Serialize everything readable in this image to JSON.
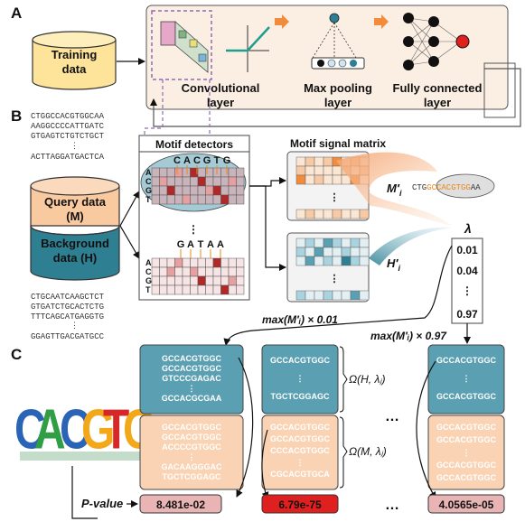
{
  "panels": {
    "a": "A",
    "b": "B",
    "c": "C"
  },
  "panel_a": {
    "training_label_1": "Training",
    "training_label_2": "data",
    "conv_label_1": "Convolutional",
    "conv_label_2": "layer",
    "pool_label_1": "Max pooling",
    "pool_label_2": "layer",
    "fc_label_1": "Fully connected",
    "fc_label_2": "layer"
  },
  "panel_b": {
    "seqs_top": [
      "CTGGCCACGTGGCAA",
      "AAGGCCCCATTGATC",
      "GTGAGTCTGTCTGCT",
      "⋮",
      "ACTTAGGATGACTCA"
    ],
    "seqs_bottom": [
      "CTGCAATCAAGCTCT",
      "GTGATCTGCACTCTG",
      "TTTCAGCATGAGGTG",
      "⋮",
      "GGAGTTGACGATGCC"
    ],
    "query_1": "Query data",
    "query_2": "(M)",
    "background_1": "Background",
    "background_2": "data (H)",
    "motif_detectors": "Motif detectors",
    "motif_signal_matrix": "Motif signal matrix",
    "motif1_letters": [
      "C",
      "A",
      "C",
      "G",
      "T",
      "G"
    ],
    "motif2_letters": [
      "G",
      "A",
      "T",
      "A",
      "A"
    ],
    "row_labels": [
      "A",
      "C",
      "G",
      "T"
    ],
    "dots": "⋮",
    "m_label": "M′",
    "m_sub": "i",
    "h_label": "H′",
    "h_sub": "i",
    "lambda": "λ",
    "lambda_values": [
      "0.01",
      "0.04",
      "⋮",
      "0.97"
    ],
    "seq_pre": "CTG",
    "seq_motif": "GCCACGTGG",
    "seq_post": "AA",
    "max_low": "max(M′ᵢ) × 0.01",
    "max_high": "max(M′ᵢ) × 0.97"
  },
  "panel_c": {
    "logo_letters": [
      "C",
      "A",
      "C",
      "G",
      "T",
      "G"
    ],
    "col1_bg": [
      "GCCACGTGGC",
      "GCCACGTGGC",
      "GTCCCGAGAC",
      "⋮",
      "GCCACGCGAA"
    ],
    "col1_q": [
      "GCCACGTGGC",
      "GCCACGTGGC",
      "ACCCCGTGGC",
      "⋮",
      "GACAAGGGAC",
      "TGCTCGGAGC"
    ],
    "col2_bg": [
      "GCCACGTGGC",
      "⋮",
      "TGCTCGGAGC"
    ],
    "col2_q": [
      "GCCACGTGGC",
      "GCCACGTGGC",
      "CCCACGTGGC",
      "⋮",
      "CGCACGTGCA"
    ],
    "col3_bg": [
      "GCCACGTGGC",
      "⋮",
      "GCCACGTGGC"
    ],
    "col3_q": [
      "GCCACGTGGC",
      "GCCACGTGGC",
      "⋮",
      "GCCACGTGGC",
      "GCCACGTGGC"
    ],
    "omega_h": "Ω(H, λⱼ)",
    "omega_m": "Ω(M, λⱼ)",
    "ellipsis": "…",
    "pvalue_label": "P-value",
    "pvalues": [
      "8.481e-02",
      "6.79e-75",
      "4.0565e-05"
    ]
  },
  "colors": {
    "panel_a_bg": "#fbeee2",
    "query": "#f9c9a0",
    "background": "#2f7f92",
    "training": "#fde49a",
    "teal_box": "#5a9fb2",
    "peach_box": "#f9d3b3",
    "pvalue_1": "#e8b4b4",
    "pvalue_2": "#e0201f",
    "pvalue_3": "#e8b4b4",
    "arrow_orange": "#f08c3c",
    "dashed_purple": "#8f6bb8",
    "motif_highlight": "#e8871e"
  }
}
